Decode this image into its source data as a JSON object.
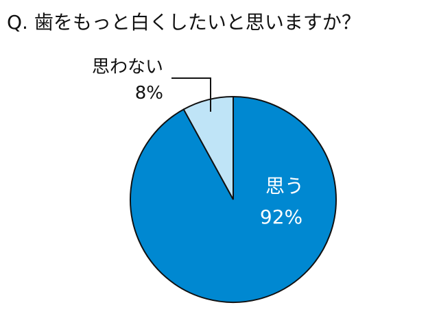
{
  "chart_data": {
    "type": "pie",
    "title": "Q. 歯をもっと白くしたいと思いますか？",
    "start_angle_deg": 0,
    "direction": "clockwise",
    "slices": [
      {
        "label": "思う",
        "value": 92,
        "value_label": "92%",
        "color": "#0088d1"
      },
      {
        "label": "思わない",
        "value": 8,
        "value_label": "8%",
        "color": "#bfe4f7"
      }
    ],
    "legend": "none"
  }
}
